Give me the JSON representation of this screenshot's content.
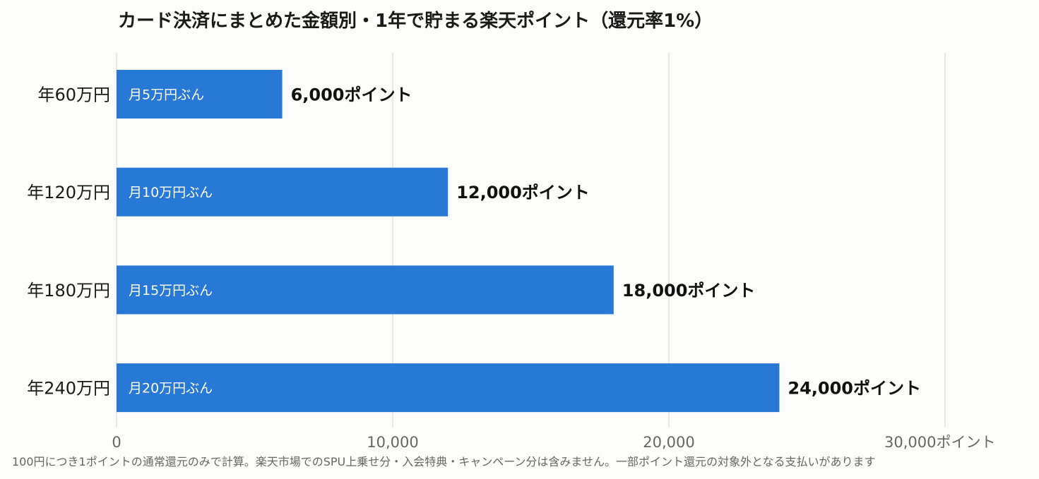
{
  "chart_data": {
    "type": "bar",
    "orientation": "horizontal",
    "title": "カード決済にまとめた金額別・1年で貯まる楽天ポイント（還元率1%）",
    "categories": [
      "年60万円",
      "年120万円",
      "年180万円",
      "年240万円"
    ],
    "inside_labels": [
      "月5万円ぶん",
      "月10万円ぶん",
      "月15万円ぶん",
      "月20万円ぶん"
    ],
    "values": [
      6000,
      12000,
      18000,
      24000
    ],
    "value_labels": [
      "6,000ポイント",
      "12,000ポイント",
      "18,000ポイント",
      "24,000ポイント"
    ],
    "xlim": [
      0,
      30000
    ],
    "x_ticks": [
      0,
      10000,
      20000,
      30000
    ],
    "x_tick_labels": [
      "0",
      "10,000",
      "20,000",
      "30,000ポイント"
    ],
    "grid": "vertical",
    "bar_color": "#2878d6",
    "footnote": "100円につき1ポイントの通常還元のみで計算。楽天市場でのSPU上乗せ分・入会特典・キャンペーン分は含みません。一部ポイント還元の対象外となる支払いがあります"
  }
}
